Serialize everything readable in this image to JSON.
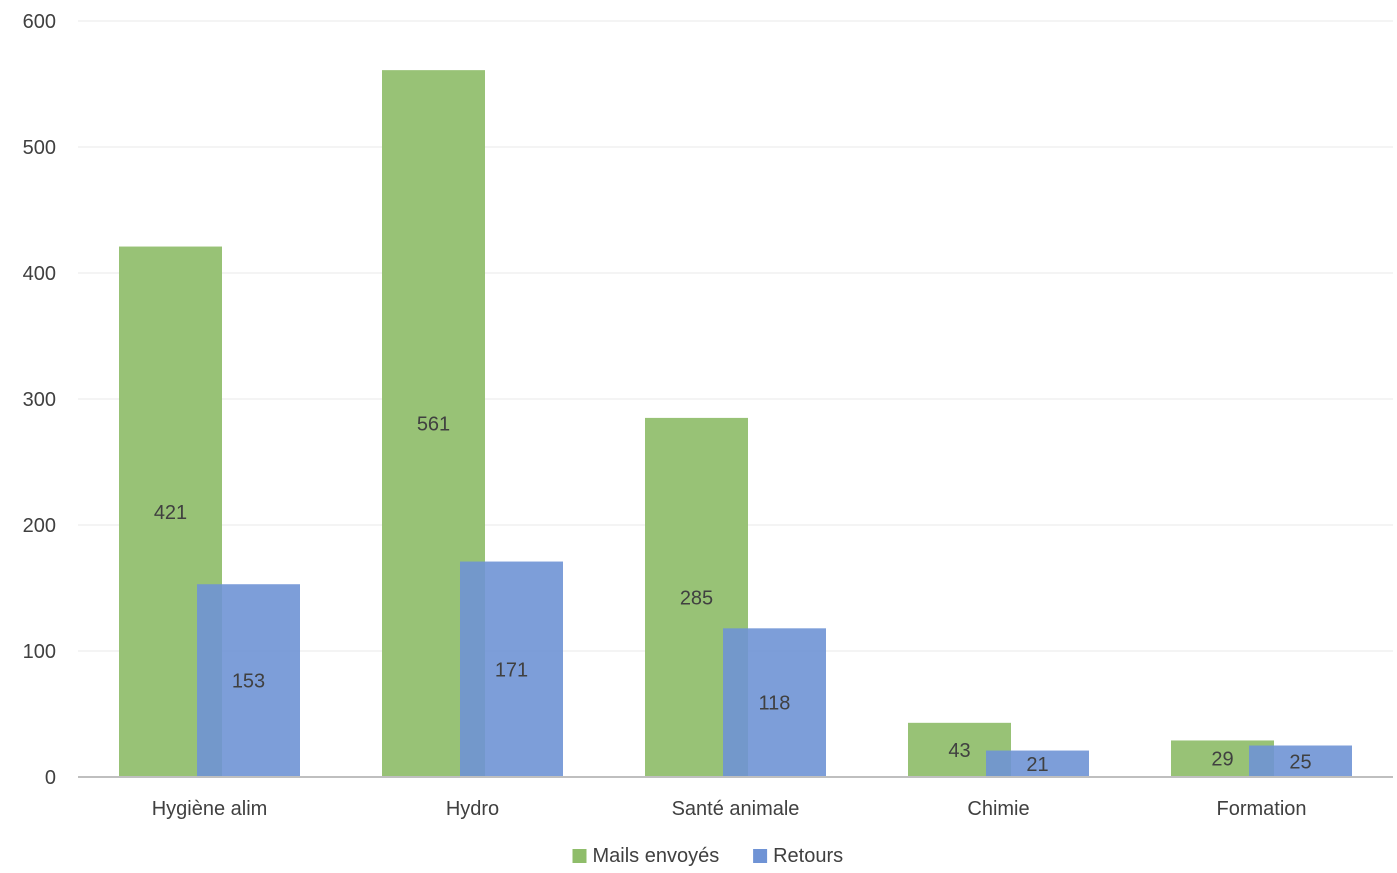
{
  "chart_data": {
    "type": "bar",
    "categories": [
      "Hygiène alim",
      "Hydro",
      "Santé animale",
      "Chimie",
      "Formation"
    ],
    "series": [
      {
        "name": "Mails envoyés",
        "values": [
          421,
          561,
          285,
          43,
          29
        ],
        "color": "#8fbd6a"
      },
      {
        "name": "Retours",
        "values": [
          153,
          171,
          118,
          21,
          25
        ],
        "color": "#6f93d5"
      }
    ],
    "ylim": [
      0,
      600
    ],
    "yticks": [
      0,
      100,
      200,
      300,
      400,
      500,
      600
    ],
    "grid": true,
    "legend": "bottom",
    "data_labels": true
  }
}
